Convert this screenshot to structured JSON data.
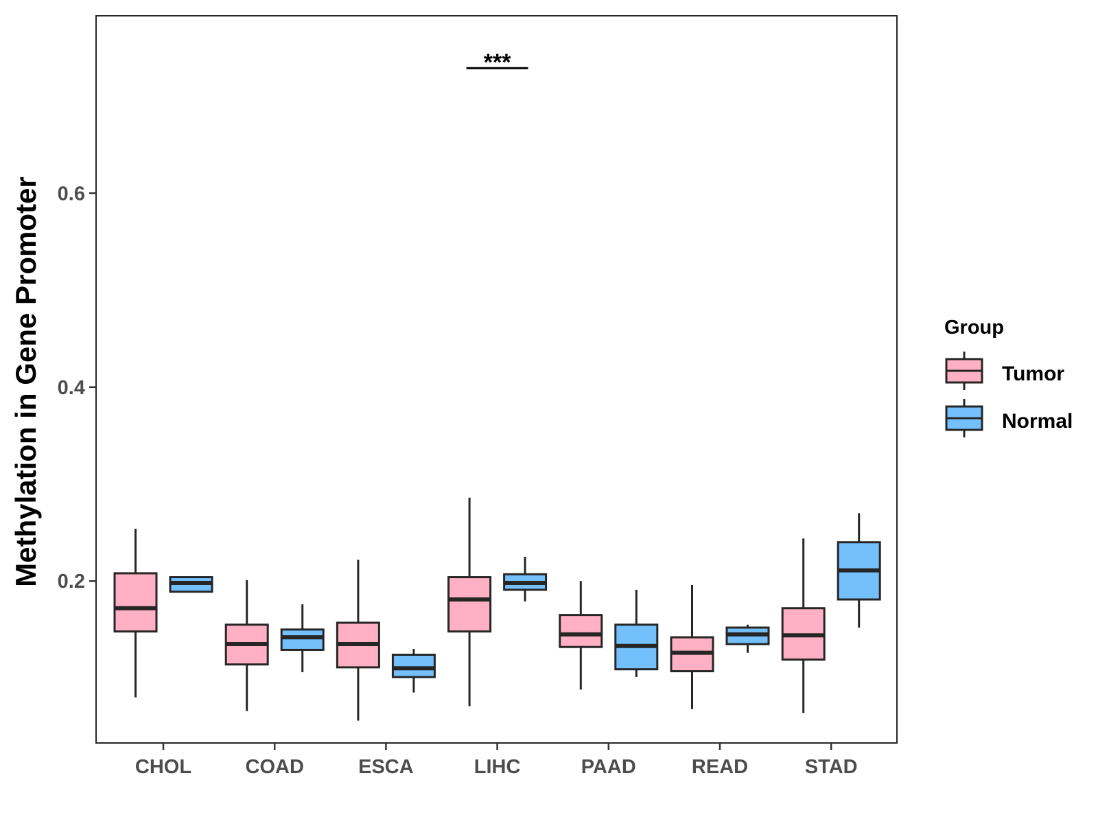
{
  "chart_data": {
    "type": "boxplot",
    "title": "",
    "xlabel": "",
    "ylabel": "Methylation in Gene Promoter",
    "ylim": [
      0.033,
      0.783
    ],
    "yticks": [
      0.2,
      0.4,
      0.6
    ],
    "ytick_labels": [
      "0.2",
      "0.4",
      "0.6"
    ],
    "categories": [
      "CHOL",
      "COAD",
      "ESCA",
      "LIHC",
      "PAAD",
      "READ",
      "STAD"
    ],
    "legend": {
      "title": "Group",
      "position": "right",
      "entries": [
        "Tumor",
        "Normal"
      ]
    },
    "colors": {
      "Tumor": "#FFB0C4",
      "Normal": "#74C0FC",
      "stroke": "#262626"
    },
    "series": [
      {
        "name": "Tumor",
        "boxes": [
          {
            "category": "CHOL",
            "whisker_low": 0.08,
            "q1": 0.148,
            "median": 0.172,
            "q3": 0.208,
            "whisker_high": 0.254
          },
          {
            "category": "COAD",
            "whisker_low": 0.066,
            "q1": 0.114,
            "median": 0.135,
            "q3": 0.155,
            "whisker_high": 0.201
          },
          {
            "category": "ESCA",
            "whisker_low": 0.056,
            "q1": 0.111,
            "median": 0.135,
            "q3": 0.157,
            "whisker_high": 0.222
          },
          {
            "category": "LIHC",
            "whisker_low": 0.071,
            "q1": 0.148,
            "median": 0.181,
            "q3": 0.204,
            "whisker_high": 0.286
          },
          {
            "category": "PAAD",
            "whisker_low": 0.088,
            "q1": 0.132,
            "median": 0.145,
            "q3": 0.165,
            "whisker_high": 0.2
          },
          {
            "category": "READ",
            "whisker_low": 0.068,
            "q1": 0.107,
            "median": 0.126,
            "q3": 0.142,
            "whisker_high": 0.196
          },
          {
            "category": "STAD",
            "whisker_low": 0.064,
            "q1": 0.119,
            "median": 0.144,
            "q3": 0.172,
            "whisker_high": 0.244
          }
        ]
      },
      {
        "name": "Normal",
        "boxes": [
          {
            "category": "CHOL",
            "whisker_low": 0.189,
            "q1": 0.189,
            "median": 0.198,
            "q3": 0.204,
            "whisker_high": 0.204
          },
          {
            "category": "COAD",
            "whisker_low": 0.106,
            "q1": 0.129,
            "median": 0.142,
            "q3": 0.15,
            "whisker_high": 0.176
          },
          {
            "category": "ESCA",
            "whisker_low": 0.085,
            "q1": 0.101,
            "median": 0.11,
            "q3": 0.124,
            "whisker_high": 0.13
          },
          {
            "category": "LIHC",
            "whisker_low": 0.179,
            "q1": 0.191,
            "median": 0.198,
            "q3": 0.207,
            "whisker_high": 0.225
          },
          {
            "category": "PAAD",
            "whisker_low": 0.101,
            "q1": 0.109,
            "median": 0.133,
            "q3": 0.155,
            "whisker_high": 0.191
          },
          {
            "category": "READ",
            "whisker_low": 0.126,
            "q1": 0.135,
            "median": 0.145,
            "q3": 0.152,
            "whisker_high": 0.155
          },
          {
            "category": "STAD",
            "whisker_low": 0.152,
            "q1": 0.181,
            "median": 0.211,
            "q3": 0.24,
            "whisker_high": 0.27
          }
        ]
      }
    ],
    "annotations": [
      {
        "category": "LIHC",
        "text": "***",
        "y": 0.729
      }
    ]
  }
}
